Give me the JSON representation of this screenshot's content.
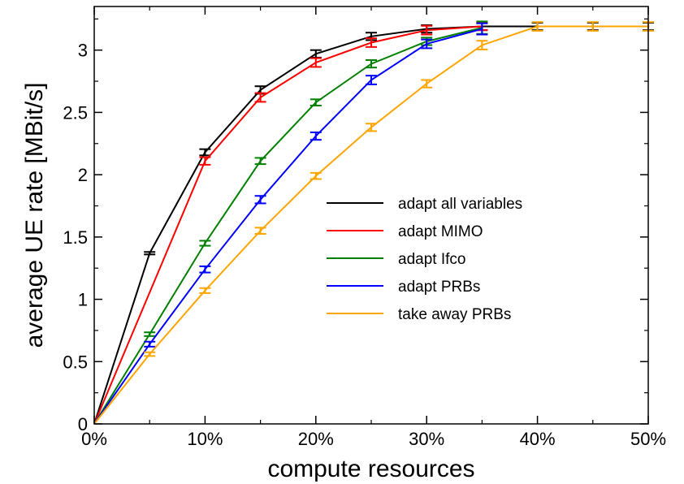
{
  "chart_data": {
    "type": "line",
    "title": "",
    "xlabel": "compute resources",
    "ylabel": "average UE rate [MBit/s]",
    "x": [
      0,
      5,
      10,
      15,
      20,
      25,
      30,
      35,
      40,
      45,
      50
    ],
    "xticks": [
      "0%",
      "10%",
      "20%",
      "30%",
      "40%",
      "50%"
    ],
    "xtick_values": [
      0,
      10,
      20,
      30,
      40,
      50
    ],
    "yticks": [
      "0",
      "0.5",
      "1",
      "1.5",
      "2",
      "2.5",
      "3"
    ],
    "ytick_values": [
      0,
      0.5,
      1,
      1.5,
      2,
      2.5,
      3
    ],
    "xlim": [
      0,
      50
    ],
    "ylim": [
      0,
      3.35
    ],
    "grid": false,
    "legend_position": "center-right",
    "series": [
      {
        "name": "adapt all variables",
        "color": "#000000",
        "x": [
          0,
          5,
          10,
          15,
          20,
          25,
          30,
          35,
          40,
          45,
          50
        ],
        "values": [
          0,
          1.37,
          2.18,
          2.68,
          2.97,
          3.11,
          3.17,
          3.19,
          3.19,
          3.19,
          3.19
        ],
        "errors": [
          0,
          0.01,
          0.025,
          0.03,
          0.03,
          0.03,
          0.03,
          0.03,
          0.03,
          0.03,
          0.03
        ]
      },
      {
        "name": "adapt MIMO",
        "color": "#ff0000",
        "x": [
          0,
          10,
          15,
          20,
          25,
          30,
          35
        ],
        "values": [
          0,
          2.11,
          2.62,
          2.9,
          3.06,
          3.16,
          3.19
        ],
        "errors": [
          0,
          0.03,
          0.035,
          0.035,
          0.035,
          0.035,
          0.03
        ]
      },
      {
        "name": "adapt Ifco",
        "color": "#008000",
        "x": [
          0,
          5,
          10,
          15,
          20,
          25,
          30,
          35
        ],
        "values": [
          0,
          0.72,
          1.45,
          2.11,
          2.58,
          2.89,
          3.07,
          3.18
        ],
        "errors": [
          0,
          0.015,
          0.02,
          0.025,
          0.025,
          0.03,
          0.03,
          0.05
        ]
      },
      {
        "name": "adapt PRBs",
        "color": "#0000ff",
        "x": [
          0,
          5,
          10,
          15,
          20,
          25,
          30,
          35
        ],
        "values": [
          0,
          0.64,
          1.24,
          1.8,
          2.31,
          2.76,
          3.05,
          3.17
        ],
        "errors": [
          0,
          0.02,
          0.025,
          0.03,
          0.03,
          0.035,
          0.035,
          0.045
        ]
      },
      {
        "name": "take away PRBs",
        "color": "#ffa500",
        "x": [
          0,
          5,
          10,
          15,
          20,
          25,
          30,
          35,
          40,
          45,
          50
        ],
        "values": [
          0,
          0.56,
          1.07,
          1.55,
          1.99,
          2.38,
          2.73,
          3.04,
          3.19,
          3.19,
          3.19
        ],
        "errors": [
          0,
          0.015,
          0.02,
          0.025,
          0.025,
          0.03,
          0.03,
          0.035,
          0.035,
          0.035,
          0.035
        ]
      }
    ]
  }
}
